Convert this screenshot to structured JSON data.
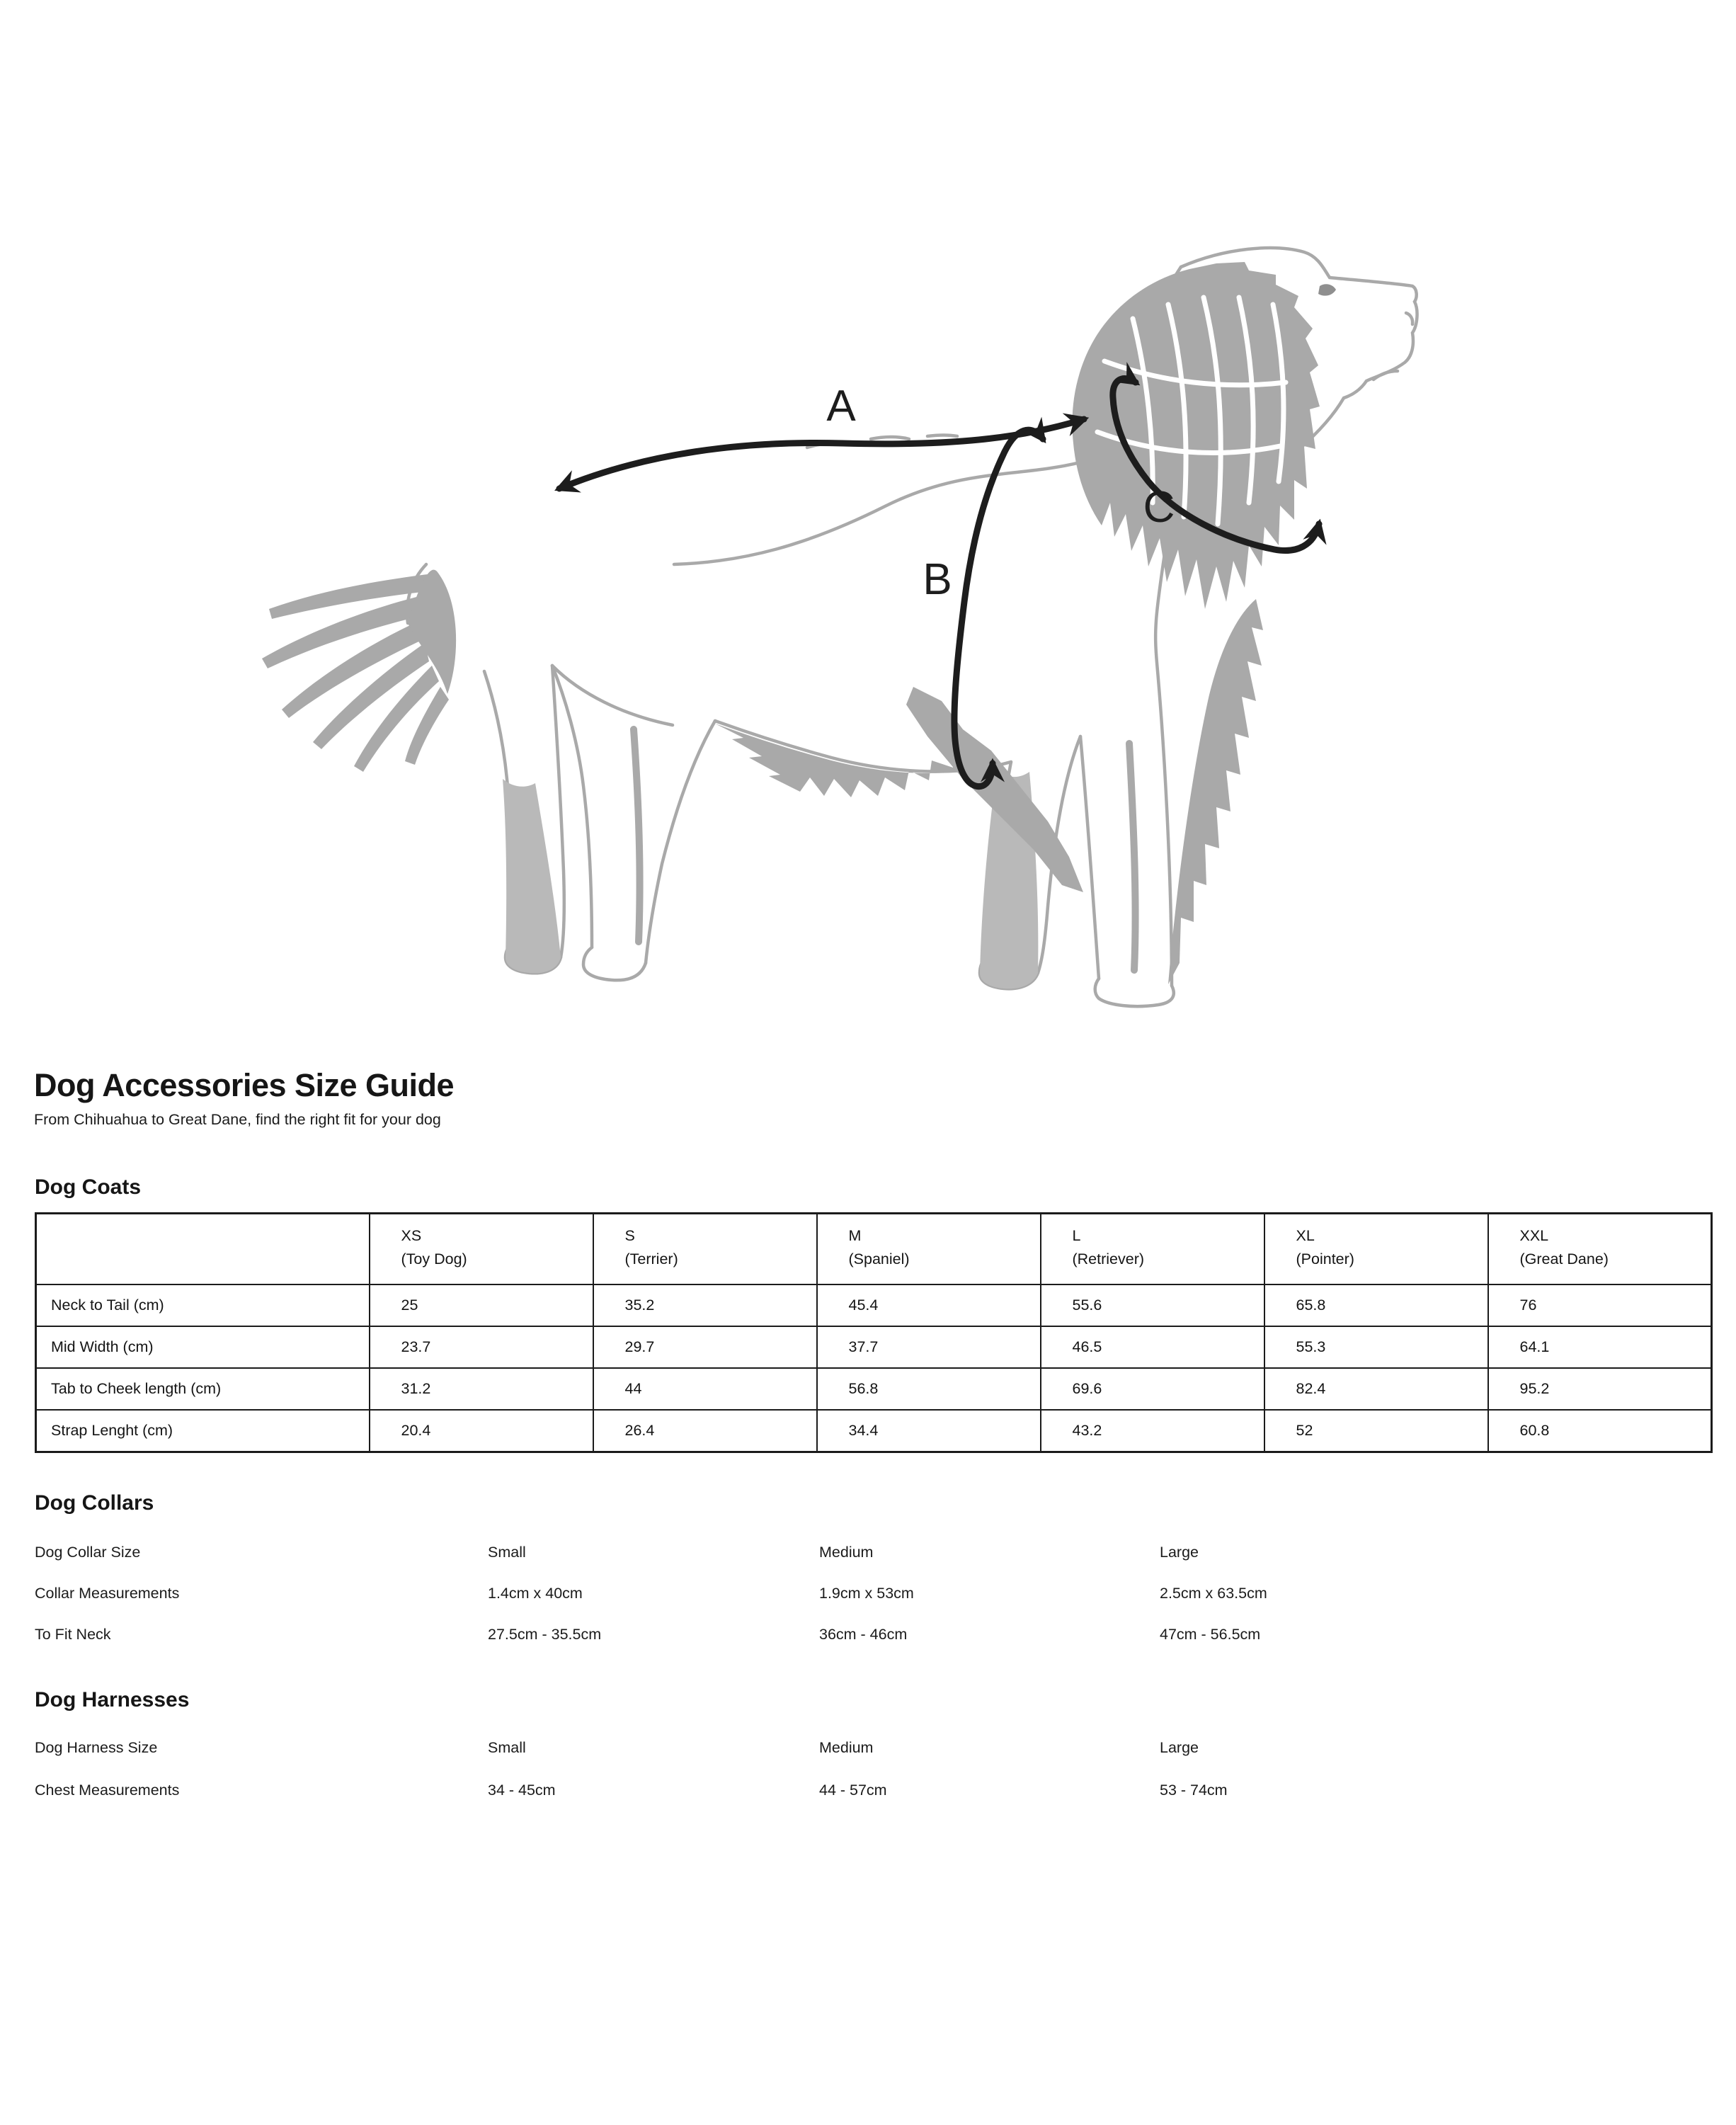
{
  "colors": {
    "ink": "#1d1d1d",
    "sketch": "#a9a9a9",
    "text": "#111111"
  },
  "illustration": {
    "label_back_length": "A",
    "label_chest_girth": "B",
    "label_neck_girth": "C"
  },
  "header": {
    "title": "Dog Accessories Size Guide",
    "subtitle": "From Chihuahua to Great Dane, find the right fit for your dog"
  },
  "coats": {
    "heading": "Dog Coats",
    "columns": [
      {
        "size": "XS",
        "breed": "(Toy Dog)"
      },
      {
        "size": "S",
        "breed": "(Terrier)"
      },
      {
        "size": "M",
        "breed": "(Spaniel)"
      },
      {
        "size": "L",
        "breed": "(Retriever)"
      },
      {
        "size": "XL",
        "breed": "(Pointer)"
      },
      {
        "size": "XXL",
        "breed": "(Great Dane)"
      }
    ],
    "rows": [
      {
        "label": "Neck to Tail (cm)",
        "values": [
          "25",
          "35.2",
          "45.4",
          "55.6",
          "65.8",
          "76"
        ]
      },
      {
        "label": "Mid Width (cm)",
        "values": [
          "23.7",
          "29.7",
          "37.7",
          "46.5",
          "55.3",
          "64.1"
        ]
      },
      {
        "label": "Tab to Cheek length (cm)",
        "values": [
          "31.2",
          "44",
          "56.8",
          "69.6",
          "82.4",
          "95.2"
        ]
      },
      {
        "label": "Strap Lenght (cm)",
        "values": [
          "20.4",
          "26.4",
          "34.4",
          "43.2",
          "52",
          "60.8"
        ]
      }
    ]
  },
  "collars": {
    "heading": "Dog Collars",
    "rows": [
      {
        "label": "Dog Collar Size",
        "values": [
          "Small",
          "Medium",
          "Large"
        ]
      },
      {
        "label": "Collar Measurements",
        "values": [
          "1.4cm x 40cm",
          "1.9cm x 53cm",
          "2.5cm x 63.5cm"
        ]
      },
      {
        "label": "To Fit Neck",
        "values": [
          "27.5cm - 35.5cm",
          "36cm - 46cm",
          "47cm - 56.5cm"
        ]
      }
    ]
  },
  "harnesses": {
    "heading": "Dog Harnesses",
    "rows": [
      {
        "label": "Dog Harness Size",
        "values": [
          "Small",
          "Medium",
          "Large"
        ]
      },
      {
        "label": "Chest Measurements",
        "values": [
          "34 - 45cm",
          "44 - 57cm",
          "53 - 74cm"
        ]
      }
    ]
  }
}
